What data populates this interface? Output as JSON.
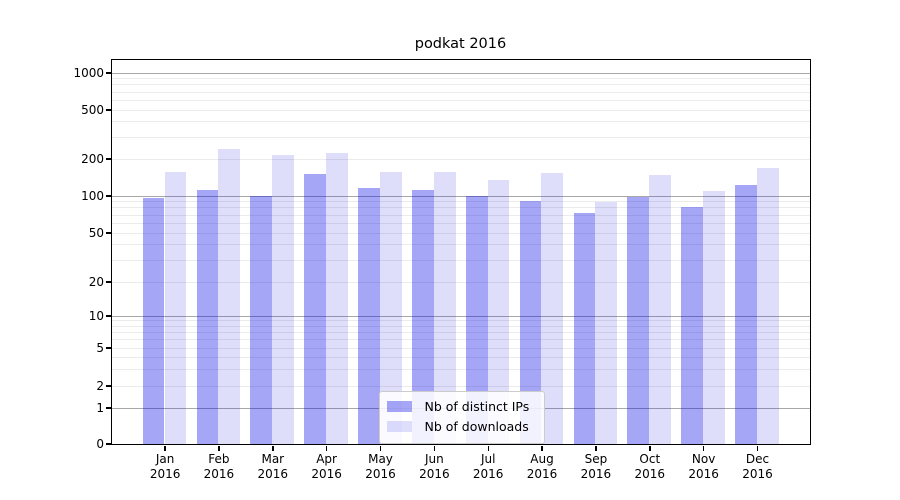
{
  "title": "podkat 2016",
  "chart_data": {
    "type": "bar",
    "title": "podkat 2016",
    "xlabel": "",
    "ylabel": "",
    "yscale": "symlog",
    "ylim": [
      0,
      1280
    ],
    "grid": true,
    "legend_position": "lower center",
    "yticks": [
      0,
      1,
      2,
      5,
      10,
      20,
      50,
      100,
      200,
      500,
      1000
    ],
    "categories": [
      "Jan",
      "Feb",
      "Mar",
      "Apr",
      "May",
      "Jun",
      "Jul",
      "Aug",
      "Sep",
      "Oct",
      "Nov",
      "Dec"
    ],
    "year": "2016",
    "series": [
      {
        "name": "Nb of distinct IPs",
        "key": "distinct-ips",
        "color": "#a6a6f6",
        "fill": "#0000e659",
        "values": [
          95,
          110,
          100,
          151,
          116,
          112,
          100,
          90,
          72,
          98,
          80,
          122
        ]
      },
      {
        "name": "Nb of downloads",
        "key": "downloads",
        "color": "#dedefb",
        "fill": "#1414e624",
        "values": [
          155,
          238,
          214,
          222,
          155,
          155,
          135,
          152,
          88,
          146,
          108,
          166
        ]
      }
    ],
    "colors": {
      "major_gridline": "#a8a8a8",
      "minor_gridline": "#ebebeb",
      "axis": "#000000"
    }
  }
}
